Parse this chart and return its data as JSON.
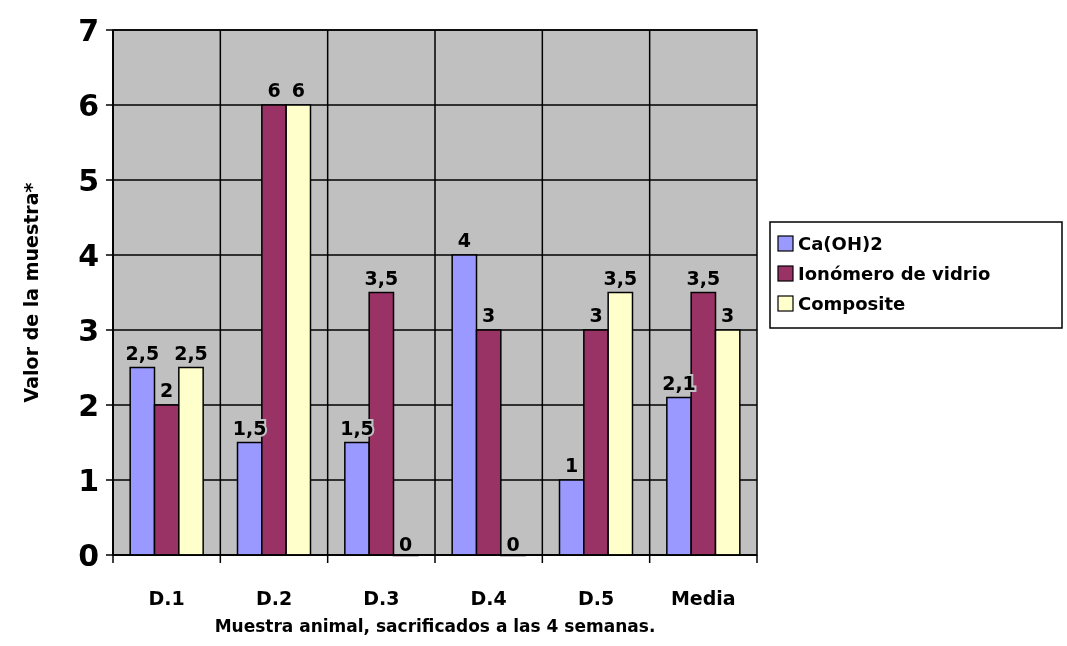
{
  "chart_data": {
    "type": "bar",
    "xlabel": "Muestra animal, sacrificados a las 4 semanas.",
    "ylabel": "Valor de la muestra*",
    "categories": [
      "D.1",
      "D.2",
      "D.3",
      "D.4",
      "D.5",
      "Media"
    ],
    "series": [
      {
        "name": "Ca(OH)2",
        "color": "#9999ff",
        "values": [
          2.5,
          1.5,
          1.5,
          4,
          1,
          2.1
        ],
        "value_labels": [
          "2,5",
          "1,5",
          "1,5",
          "4",
          "1",
          "2,1"
        ]
      },
      {
        "name": "Ionómero de vidrio",
        "color": "#993366",
        "values": [
          2,
          6,
          3.5,
          3,
          3,
          3.5
        ],
        "value_labels": [
          "2",
          "6",
          "3,5",
          "3",
          "3",
          "3,5"
        ]
      },
      {
        "name": "Composite",
        "color": "#ffffcc",
        "values": [
          2.5,
          6,
          0,
          0,
          3.5,
          3
        ],
        "value_labels": [
          "2,5",
          "6",
          "0",
          "0",
          "3,5",
          "3"
        ]
      }
    ],
    "ylim": [
      0,
      7
    ],
    "yticks": [
      0,
      1,
      2,
      3,
      4,
      5,
      6,
      7
    ],
    "grid": true,
    "legend": "right"
  }
}
